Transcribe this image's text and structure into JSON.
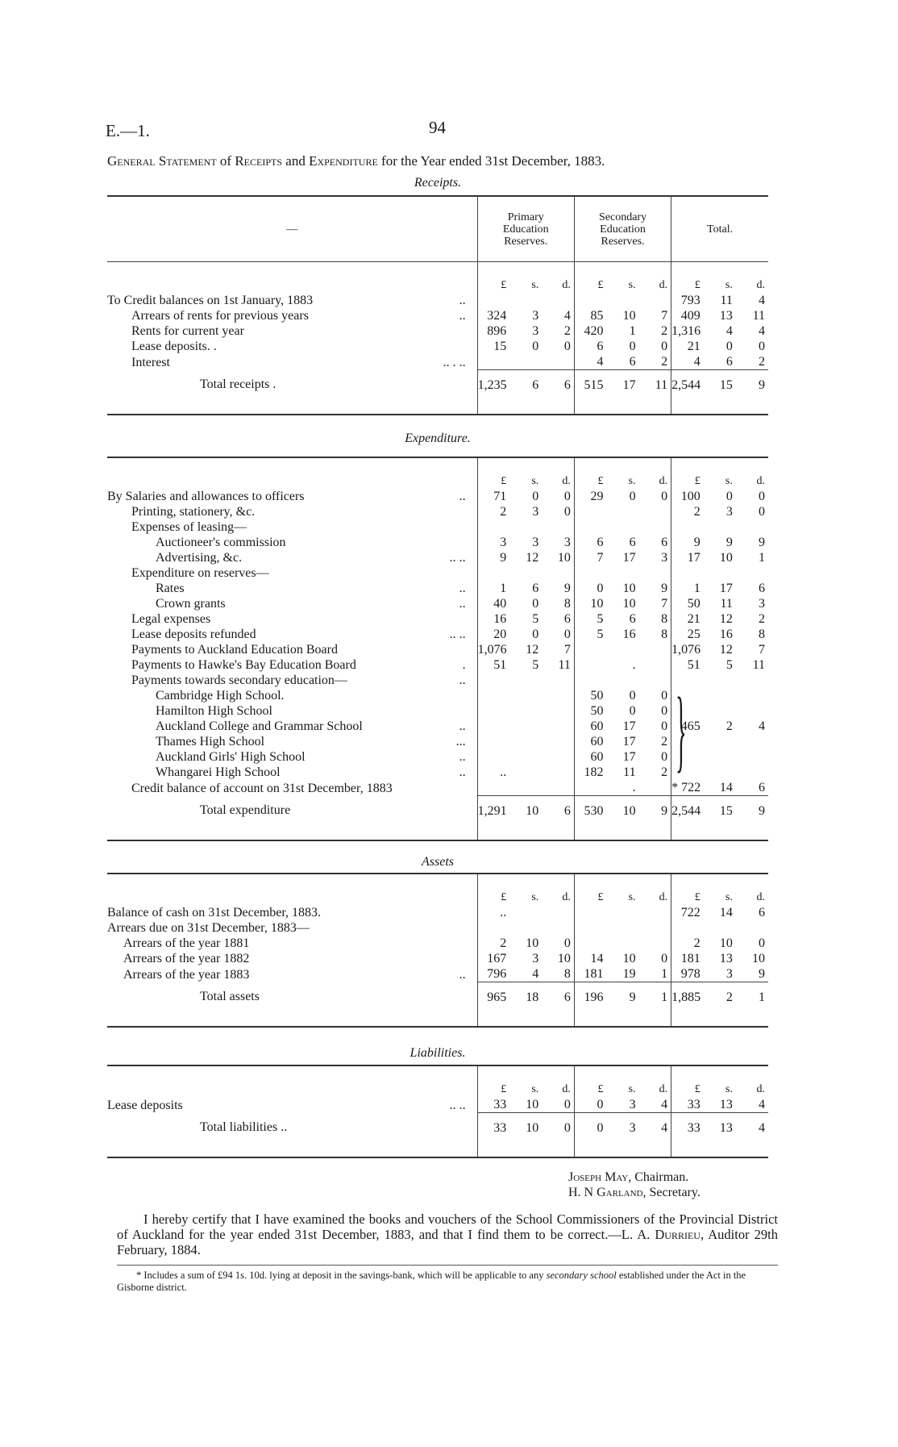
{
  "header": {
    "reference": "E.—1.",
    "page_number": "94"
  },
  "title": {
    "general": "General Statement",
    "of": "of",
    "receipts": "Receipts",
    "and": "and",
    "expenditure": "Expenditure",
    "rest": "for the Year ended 31st December, 1883."
  },
  "columns": {
    "blank": "—",
    "primary": "Primary Education Reserves.",
    "secondary": "Secondary Education Reserves.",
    "total": "Total.",
    "units": [
      "£",
      "s.",
      "d."
    ]
  },
  "receipts": {
    "title": "Receipts.",
    "rows": [
      {
        "label": "To Credit balances on 1st January, 1883",
        "indent": 0,
        "leader": "..",
        "primary": [
          "",
          "",
          ""
        ],
        "secondary": [
          "",
          "",
          ""
        ],
        "total": [
          "793",
          "11",
          "4"
        ]
      },
      {
        "label": "Arrears of rents for previous years",
        "indent": 1,
        "leader": "..",
        "primary": [
          "324",
          "3",
          "4"
        ],
        "secondary": [
          "85",
          "10",
          "7"
        ],
        "total": [
          "409",
          "13",
          "11"
        ]
      },
      {
        "label": "Rents for current year",
        "indent": 1,
        "leader": "",
        "primary": [
          "896",
          "3",
          "2"
        ],
        "secondary": [
          "420",
          "1",
          "2"
        ],
        "total": [
          "1,316",
          "4",
          "4"
        ]
      },
      {
        "label": "Lease deposits. .",
        "indent": 1,
        "leader": "",
        "primary": [
          "15",
          "0",
          "0"
        ],
        "secondary": [
          "6",
          "0",
          "0"
        ],
        "total": [
          "21",
          "0",
          "0"
        ]
      },
      {
        "label": "Interest",
        "indent": 1,
        "leader": "..        .        ..",
        "primary": [
          "",
          "",
          ""
        ],
        "secondary": [
          "4",
          "6",
          "2"
        ],
        "total": [
          "4",
          "6",
          "2"
        ]
      }
    ],
    "total": {
      "label": "Total receipts  .",
      "primary": [
        "1,235",
        "6",
        "6"
      ],
      "secondary": [
        "515",
        "17",
        "11"
      ],
      "total": [
        "2,544",
        "15",
        "9"
      ]
    }
  },
  "expenditure": {
    "title": "Expenditure.",
    "rows": [
      {
        "label": "By Salaries and allowances to officers",
        "indent": 0,
        "leader": "..",
        "primary": [
          "71",
          "0",
          "0"
        ],
        "secondary": [
          "29",
          "0",
          "0"
        ],
        "total": [
          "100",
          "0",
          "0"
        ]
      },
      {
        "label": "Printing, stationery, &c.",
        "indent": 1,
        "leader": "",
        "primary": [
          "2",
          "3",
          "0"
        ],
        "secondary": [
          "",
          "",
          ""
        ],
        "total": [
          "2",
          "3",
          "0"
        ]
      },
      {
        "label": "Expenses of leasing—",
        "indent": 1,
        "leader": "",
        "primary": [
          "",
          "",
          ""
        ],
        "secondary": [
          "",
          "",
          ""
        ],
        "total": [
          "",
          "",
          ""
        ]
      },
      {
        "label": "Auctioneer's commission",
        "indent": 2,
        "leader": "",
        "primary": [
          "3",
          "3",
          "3"
        ],
        "secondary": [
          "6",
          "6",
          "6"
        ],
        "total": [
          "9",
          "9",
          "9"
        ]
      },
      {
        "label": "Advertising, &c.",
        "indent": 2,
        "leader": "..          ..",
        "primary": [
          "9",
          "12",
          "10"
        ],
        "secondary": [
          "7",
          "17",
          "3"
        ],
        "total": [
          "17",
          "10",
          "1"
        ]
      },
      {
        "label": "Expenditure on reserves—",
        "indent": 1,
        "leader": "",
        "primary": [
          "",
          "",
          ""
        ],
        "secondary": [
          "",
          "",
          ""
        ],
        "total": [
          "",
          "",
          ""
        ]
      },
      {
        "label": "Rates",
        "indent": 2,
        "leader": "..",
        "primary": [
          "1",
          "6",
          "9"
        ],
        "secondary": [
          "0",
          "10",
          "9"
        ],
        "total": [
          "1",
          "17",
          "6"
        ]
      },
      {
        "label": "Crown grants",
        "indent": 2,
        "leader": "..",
        "primary": [
          "40",
          "0",
          "8"
        ],
        "secondary": [
          "10",
          "10",
          "7"
        ],
        "total": [
          "50",
          "11",
          "3"
        ]
      },
      {
        "label": "Legal expenses",
        "indent": 1,
        "leader": "",
        "primary": [
          "16",
          "5",
          "6"
        ],
        "secondary": [
          "5",
          "6",
          "8"
        ],
        "total": [
          "21",
          "12",
          "2"
        ]
      },
      {
        "label": "Lease deposits refunded",
        "indent": 1,
        "leader": "..        ..",
        "primary": [
          "20",
          "0",
          "0"
        ],
        "secondary": [
          "5",
          "16",
          "8"
        ],
        "total": [
          "25",
          "16",
          "8"
        ]
      },
      {
        "label": "Payments to Auckland Education Board",
        "indent": 1,
        "leader": "",
        "primary": [
          "1,076",
          "12",
          "7"
        ],
        "secondary": [
          "",
          "",
          ""
        ],
        "total": [
          "1,076",
          "12",
          "7"
        ]
      },
      {
        "label": "Payments to Hawke's Bay Education Board",
        "indent": 1,
        "leader": ".",
        "primary": [
          "51",
          "5",
          "11"
        ],
        "secondary": [
          "",
          ".",
          ""
        ],
        "total": [
          "51",
          "5",
          "11"
        ]
      },
      {
        "label": "Payments towards secondary education—",
        "indent": 1,
        "leader": "..",
        "primary": [
          "",
          "",
          ""
        ],
        "secondary": [
          "",
          "",
          ""
        ],
        "total": [
          "",
          "",
          ""
        ]
      },
      {
        "label": "Cambridge High School.",
        "indent": 2,
        "leader": "",
        "primary": [
          "",
          "",
          ""
        ],
        "secondary": [
          "50",
          "0",
          "0"
        ],
        "total": [
          "",
          "",
          ""
        ]
      },
      {
        "label": "Hamilton High School",
        "indent": 2,
        "leader": "",
        "primary": [
          "",
          "",
          ""
        ],
        "secondary": [
          "50",
          "0",
          "0"
        ],
        "total": [
          "",
          "",
          ""
        ]
      },
      {
        "label": "Auckland College and Grammar School",
        "indent": 2,
        "leader": "..",
        "primary": [
          "",
          "",
          ""
        ],
        "secondary": [
          "60",
          "17",
          "0"
        ],
        "total": [
          "465",
          "2",
          "4"
        ]
      },
      {
        "label": "Thames High School",
        "indent": 2,
        "leader": "...",
        "primary": [
          "",
          "",
          ""
        ],
        "secondary": [
          "60",
          "17",
          "2"
        ],
        "total": [
          "",
          "",
          ""
        ]
      },
      {
        "label": "Auckland Girls' High School",
        "indent": 2,
        "leader": "..",
        "primary": [
          "",
          "",
          ""
        ],
        "secondary": [
          "60",
          "17",
          "0"
        ],
        "total": [
          "",
          "",
          ""
        ]
      },
      {
        "label": "Whangarei High School",
        "indent": 2,
        "leader": "..",
        "primary": [
          "..",
          "",
          ""
        ],
        "secondary": [
          "182",
          "11",
          "2"
        ],
        "total": [
          "",
          "",
          ""
        ]
      },
      {
        "label": "Credit balance of account on 31st December, 1883",
        "indent": 1,
        "leader": "",
        "primary": [
          "",
          "",
          ""
        ],
        "secondary": [
          "",
          ".",
          ""
        ],
        "total": [
          "* 722",
          "14",
          "6"
        ]
      }
    ],
    "total": {
      "label": "Total expenditure",
      "primary": [
        "1,291",
        "10",
        "6"
      ],
      "secondary": [
        "530",
        "10",
        "9"
      ],
      "total": [
        "2,544",
        "15",
        "9"
      ]
    }
  },
  "assets": {
    "title": "Assets",
    "rows": [
      {
        "label": "Balance of cash on 31st December, 1883.",
        "indent": 0,
        "leader": "",
        "primary": [
          "..",
          "",
          ""
        ],
        "secondary": [
          "",
          "",
          ""
        ],
        "total": [
          "722",
          "14",
          "6"
        ]
      },
      {
        "label": "Arrears due on 31st December, 1883—",
        "indent": 0,
        "leader": "",
        "primary": [
          "",
          "",
          ""
        ],
        "secondary": [
          "",
          "",
          ""
        ],
        "total": [
          "",
          "",
          ""
        ]
      },
      {
        "label": "Arrears of the year 1881",
        "indent": 1,
        "leader": "",
        "primary": [
          "2",
          "10",
          "0"
        ],
        "secondary": [
          "",
          "",
          ""
        ],
        "total": [
          "2",
          "10",
          "0"
        ]
      },
      {
        "label": "Arrears of the year 1882",
        "indent": 1,
        "leader": "",
        "primary": [
          "167",
          "3",
          "10"
        ],
        "secondary": [
          "14",
          "10",
          "0"
        ],
        "total": [
          "181",
          "13",
          "10"
        ]
      },
      {
        "label": "Arrears of the year 1883",
        "indent": 1,
        "leader": "..",
        "primary": [
          "796",
          "4",
          "8"
        ],
        "secondary": [
          "181",
          "19",
          "1"
        ],
        "total": [
          "978",
          "3",
          "9"
        ]
      }
    ],
    "total": {
      "label": "Total assets",
      "primary": [
        "965",
        "18",
        "6"
      ],
      "secondary": [
        "196",
        "9",
        "1"
      ],
      "total": [
        "1,885",
        "2",
        "1"
      ]
    }
  },
  "liabilities": {
    "title": "Liabilities.",
    "rows": [
      {
        "label": "Lease deposits",
        "indent": 0,
        "leader": "..                                  ..",
        "primary": [
          "33",
          "10",
          "0"
        ],
        "secondary": [
          "0",
          "3",
          "4"
        ],
        "total": [
          "33",
          "13",
          "4"
        ]
      }
    ],
    "total": {
      "label": "Total liabilities          ..",
      "primary": [
        "33",
        "10",
        "0"
      ],
      "secondary": [
        "0",
        "3",
        "4"
      ],
      "total": [
        "33",
        "13",
        "4"
      ]
    }
  },
  "signatures": [
    {
      "name": "Joseph May",
      "role": ", Chairman."
    },
    {
      "name": "H. N  Garland",
      "role": ", Secretary."
    }
  ],
  "certificate": {
    "text": "I hereby certify that I have examined the books and vouchers of the School Commissioners of the Provincial District of Auckland for the year ended 31st December, 1883, and that I find them to be correct.—",
    "auditor": "L. A. Durrieu",
    "rest": ", Auditor   29th February, 1884."
  },
  "footnote": {
    "text": "* Includes a sum of £94 1s. 10d. lying at deposit in the savings-bank, which will be applicable to any",
    "italic1": "secondary school",
    "rest": " established under the Act in the Gisborne district."
  }
}
